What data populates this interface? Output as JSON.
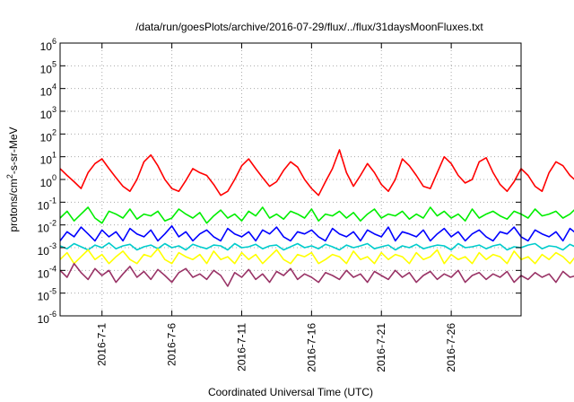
{
  "chart_data": {
    "type": "line",
    "title": "/data/run/goesPlots/archive/2016-07-29/flux/../flux/31daysMoonFluxes.txt",
    "xlabel": "Coordinated Universal Time (UTC)",
    "ylabel": {
      "prefix": "protons/cm",
      "superscript": "2",
      "suffix": "-s-sr-MeV"
    },
    "x_range": [
      "2016-06-28",
      "2016-07-31"
    ],
    "x_ticks": [
      "2016-7-1",
      "2016-7-6",
      "2016-7-11",
      "2016-7-16",
      "2016-7-21",
      "2016-7-26"
    ],
    "x_tick_dates": [
      "2016-07-01",
      "2016-07-06",
      "2016-07-11",
      "2016-07-16",
      "2016-07-21",
      "2016-07-26"
    ],
    "y_scale": "log",
    "ylim": [
      1e-06,
      1000000.0
    ],
    "y_ticks": [
      {
        "base": "10",
        "exp": "6"
      },
      {
        "base": "10",
        "exp": "5"
      },
      {
        "base": "10",
        "exp": "4"
      },
      {
        "base": "10",
        "exp": "3"
      },
      {
        "base": "10",
        "exp": "2"
      },
      {
        "base": "10",
        "exp": "1"
      },
      {
        "base": "10",
        "exp": "0"
      },
      {
        "base": "10",
        "exp": "-1"
      },
      {
        "base": "10",
        "exp": "-2"
      },
      {
        "base": "10",
        "exp": "-3"
      },
      {
        "base": "10",
        "exp": "-4"
      },
      {
        "base": "10",
        "exp": "-5"
      },
      {
        "base": "10",
        "exp": "-6"
      }
    ],
    "grid": true,
    "legend": "none",
    "series": [
      {
        "color": "#ff0000",
        "points_per_day": 2,
        "values": [
          3.0,
          1.5,
          0.8,
          0.4,
          2.0,
          5.0,
          8.0,
          3.0,
          1.2,
          0.5,
          0.3,
          1.0,
          6.0,
          12.0,
          4.0,
          1.0,
          0.4,
          0.3,
          0.9,
          3.0,
          2.0,
          1.5,
          0.6,
          0.2,
          0.3,
          1.0,
          4.0,
          8.0,
          3.0,
          1.2,
          0.5,
          0.8,
          2.5,
          6.0,
          3.5,
          1.0,
          0.4,
          0.2,
          0.8,
          3.0,
          20.0,
          2.0,
          0.5,
          1.5,
          5.0,
          2.0,
          0.6,
          0.3,
          1.0,
          8.0,
          4.0,
          1.5,
          0.5,
          0.4,
          2.0,
          10.0,
          5.0,
          1.5,
          0.7,
          1.0,
          6.0,
          9.0,
          2.0,
          0.6,
          0.3,
          0.8,
          3.0,
          1.5,
          0.5,
          0.3,
          2.0,
          6.0,
          4.0,
          1.5,
          0.8,
          0.6,
          0.3,
          0.2,
          1.0,
          0.7
        ]
      },
      {
        "color": "#00ee00",
        "points_per_day": 2,
        "values": [
          0.02,
          0.04,
          0.015,
          0.03,
          0.06,
          0.02,
          0.012,
          0.04,
          0.03,
          0.02,
          0.05,
          0.018,
          0.03,
          0.025,
          0.04,
          0.015,
          0.02,
          0.05,
          0.03,
          0.02,
          0.035,
          0.012,
          0.025,
          0.045,
          0.02,
          0.03,
          0.015,
          0.04,
          0.025,
          0.06,
          0.02,
          0.03,
          0.018,
          0.04,
          0.03,
          0.02,
          0.05,
          0.015,
          0.03,
          0.025,
          0.04,
          0.02,
          0.035,
          0.015,
          0.03,
          0.05,
          0.02,
          0.03,
          0.025,
          0.04,
          0.018,
          0.03,
          0.02,
          0.06,
          0.025,
          0.04,
          0.02,
          0.03,
          0.015,
          0.05,
          0.02,
          0.03,
          0.04,
          0.025,
          0.018,
          0.04,
          0.03,
          0.02,
          0.05,
          0.025,
          0.03,
          0.04,
          0.02,
          0.03,
          0.06,
          0.02,
          0.035,
          0.025,
          0.04,
          0.02
        ]
      },
      {
        "color": "#0000ff",
        "points_per_day": 2,
        "values": [
          0.002,
          0.005,
          0.003,
          0.008,
          0.004,
          0.002,
          0.006,
          0.003,
          0.005,
          0.002,
          0.007,
          0.004,
          0.003,
          0.006,
          0.002,
          0.004,
          0.009,
          0.003,
          0.005,
          0.002,
          0.004,
          0.006,
          0.003,
          0.002,
          0.007,
          0.004,
          0.003,
          0.005,
          0.002,
          0.006,
          0.004,
          0.008,
          0.003,
          0.002,
          0.005,
          0.004,
          0.006,
          0.003,
          0.002,
          0.007,
          0.004,
          0.003,
          0.005,
          0.002,
          0.006,
          0.004,
          0.003,
          0.008,
          0.002,
          0.005,
          0.004,
          0.003,
          0.006,
          0.002,
          0.004,
          0.007,
          0.003,
          0.005,
          0.002,
          0.004,
          0.006,
          0.003,
          0.002,
          0.005,
          0.004,
          0.008,
          0.003,
          0.002,
          0.006,
          0.004,
          0.003,
          0.005,
          0.002,
          0.007,
          0.004,
          0.003,
          0.005,
          0.002,
          0.004,
          0.003
        ]
      },
      {
        "color": "#00cccc",
        "points_per_day": 2,
        "values": [
          0.0012,
          0.0009,
          0.0015,
          0.0011,
          0.0008,
          0.0013,
          0.001,
          0.0016,
          0.0009,
          0.0012,
          0.0014,
          0.0008,
          0.0011,
          0.0013,
          0.0009,
          0.0015,
          0.001,
          0.0012,
          0.0008,
          0.0014,
          0.0011,
          0.0009,
          0.0013,
          0.0012,
          0.0008,
          0.0015,
          0.001,
          0.0011,
          0.0014,
          0.0009,
          0.0012,
          0.0013,
          0.0008,
          0.0011,
          0.0015,
          0.001,
          0.0012,
          0.0009,
          0.0014,
          0.0011,
          0.0008,
          0.0013,
          0.001,
          0.0012,
          0.0015,
          0.0009,
          0.0011,
          0.0013,
          0.0008,
          0.0012,
          0.001,
          0.0014,
          0.0009,
          0.0011,
          0.0013,
          0.0012,
          0.0008,
          0.0015,
          0.001,
          0.0011,
          0.0013,
          0.0009,
          0.0012,
          0.0014,
          0.0008,
          0.0011,
          0.001,
          0.0013,
          0.0015,
          0.0009,
          0.0012,
          0.0011,
          0.0008,
          0.0014,
          0.001,
          0.0012,
          0.0013,
          0.0009,
          0.0011,
          0.001
        ]
      },
      {
        "color": "#ffff00",
        "points_per_day": 2,
        "values": [
          0.0003,
          0.0006,
          0.0002,
          0.0004,
          0.0008,
          0.0003,
          0.0005,
          0.0002,
          0.0004,
          0.0007,
          0.0003,
          0.0002,
          0.0005,
          0.0004,
          0.0009,
          0.0003,
          0.0002,
          0.0006,
          0.0004,
          0.0003,
          0.0005,
          0.0002,
          0.0007,
          0.0003,
          0.0004,
          0.0002,
          0.0006,
          0.0003,
          0.0005,
          0.0002,
          0.0004,
          0.0008,
          0.0003,
          0.0002,
          0.0005,
          0.0004,
          0.0006,
          0.0002,
          0.0003,
          0.0005,
          0.0004,
          0.0002,
          0.0007,
          0.0003,
          0.0004,
          0.0002,
          0.0006,
          0.0003,
          0.0005,
          0.0004,
          0.0002,
          0.0006,
          0.0003,
          0.0004,
          0.0008,
          0.0002,
          0.0005,
          0.0003,
          0.0004,
          0.0002,
          0.0006,
          0.0003,
          0.0005,
          0.0004,
          0.0002,
          0.0007,
          0.0003,
          0.0004,
          0.0002,
          0.0005,
          0.0003,
          0.0006,
          0.0004,
          0.0002,
          0.0005,
          0.0003,
          0.0004,
          0.0002,
          0.0006,
          0.0003
        ]
      },
      {
        "color": "#993366",
        "points_per_day": 2,
        "values": [
          0.0001,
          5e-05,
          0.0002,
          8e-05,
          4e-05,
          0.00012,
          6e-05,
          0.0001,
          3e-05,
          7e-05,
          0.00015,
          5e-05,
          9e-05,
          4e-05,
          0.00011,
          6e-05,
          3e-05,
          8e-05,
          0.00012,
          5e-05,
          7e-05,
          4e-05,
          0.0001,
          6e-05,
          2e-05,
          8e-05,
          5e-05,
          0.00011,
          4e-05,
          7e-05,
          3e-05,
          9e-05,
          6e-05,
          0.00012,
          4e-05,
          7e-05,
          5e-05,
          3e-05,
          8e-05,
          6e-05,
          4e-05,
          0.0001,
          5e-05,
          7e-05,
          3e-05,
          9e-05,
          6e-05,
          4e-05,
          0.0001,
          5e-05,
          8e-05,
          3e-05,
          6e-05,
          9e-05,
          4e-05,
          7e-05,
          5e-05,
          0.0001,
          3e-05,
          6e-05,
          8e-05,
          4e-05,
          7e-05,
          5e-05,
          9e-05,
          3e-05,
          6e-05,
          4e-05,
          8e-05,
          5e-05,
          7e-05,
          3e-05,
          9e-05,
          5e-05,
          6e-05,
          4e-05,
          8e-05,
          5e-05,
          4e-05,
          6e-05
        ]
      }
    ]
  }
}
